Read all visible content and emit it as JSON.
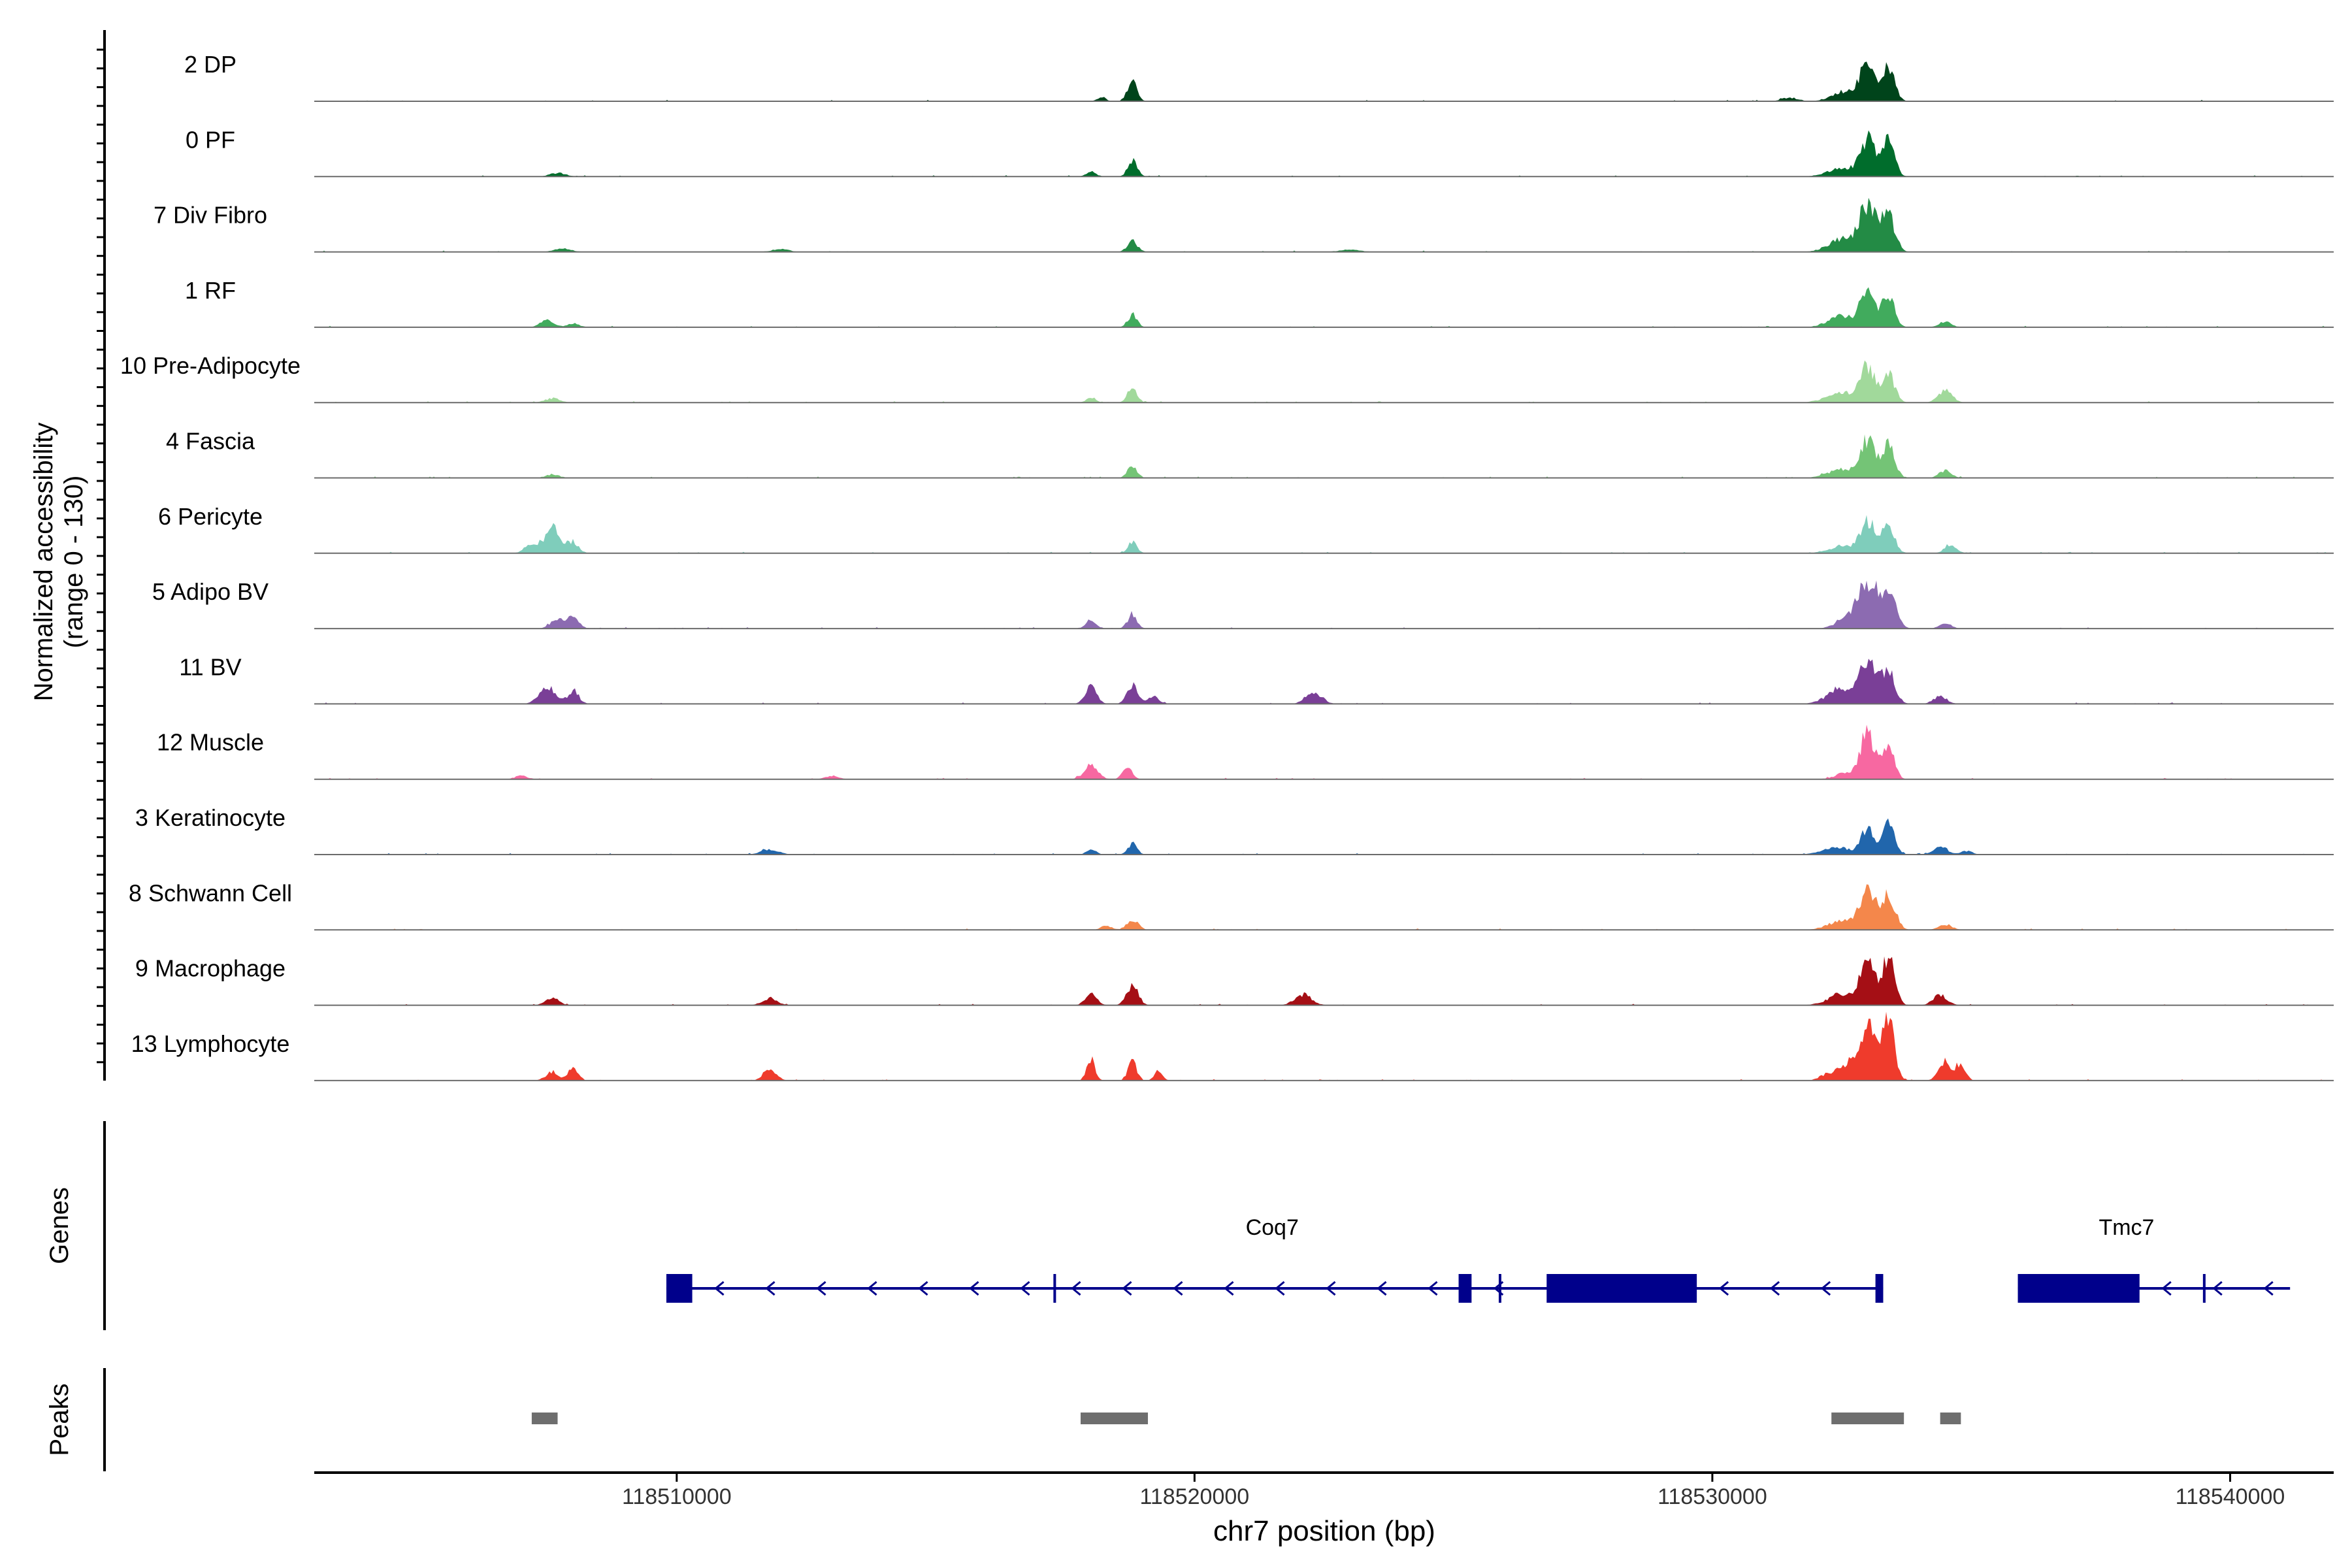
{
  "chart_data": {
    "type": "area",
    "title": "",
    "xlabel": "chr7 position (bp)",
    "ylabel": "Normalized accessibility",
    "ylabel_range": "(range 0 - 130)",
    "ylim": [
      0,
      130
    ],
    "xlim": [
      118503000,
      118542000
    ],
    "x_ticks": [
      118510000,
      118520000,
      118530000,
      118540000
    ],
    "x_tick_labels": [
      "118510000",
      "118520000",
      "118530000",
      "118540000"
    ],
    "panel_labels": {
      "genes": "Genes",
      "peaks": "Peaks"
    },
    "legend": "none",
    "grid": false,
    "tracks": [
      {
        "name": "2 DP",
        "color": "#00441B",
        "peaks": [
          [
            118533000,
            105,
            130
          ],
          [
            118533400,
            100,
            120
          ],
          [
            118532600,
            30,
            260
          ],
          [
            118531500,
            10,
            150
          ],
          [
            118518800,
            60,
            90
          ],
          [
            118518200,
            12,
            80
          ]
        ]
      },
      {
        "name": "0 PF",
        "color": "#006D2C",
        "peaks": [
          [
            118533000,
            100,
            140
          ],
          [
            118533400,
            95,
            120
          ],
          [
            118532500,
            25,
            260
          ],
          [
            118518800,
            45,
            90
          ],
          [
            118518000,
            15,
            90
          ],
          [
            118507700,
            10,
            150
          ]
        ]
      },
      {
        "name": "7 Div Fibro",
        "color": "#238B45",
        "peaks": [
          [
            118533000,
            125,
            160
          ],
          [
            118533400,
            100,
            130
          ],
          [
            118532500,
            35,
            260
          ],
          [
            118518800,
            30,
            100
          ],
          [
            118507800,
            10,
            160
          ],
          [
            118512000,
            8,
            160
          ],
          [
            118523000,
            6,
            200
          ]
        ]
      },
      {
        "name": "1 RF",
        "color": "#41AB5D",
        "peaks": [
          [
            118533000,
            100,
            140
          ],
          [
            118533400,
            85,
            120
          ],
          [
            118532500,
            30,
            260
          ],
          [
            118534500,
            15,
            120
          ],
          [
            118518800,
            35,
            90
          ],
          [
            118507500,
            20,
            130
          ],
          [
            118508000,
            10,
            120
          ]
        ]
      },
      {
        "name": "10 Pre-Adipocyte",
        "color": "#A1D99B",
        "peaks": [
          [
            118533000,
            95,
            140
          ],
          [
            118533400,
            80,
            120
          ],
          [
            118532500,
            30,
            280
          ],
          [
            118534500,
            35,
            130
          ],
          [
            118518800,
            45,
            90
          ],
          [
            118518000,
            15,
            90
          ],
          [
            118507600,
            12,
            140
          ]
        ]
      },
      {
        "name": "4 Fascia",
        "color": "#74C476",
        "peaks": [
          [
            118533000,
            100,
            140
          ],
          [
            118533400,
            90,
            120
          ],
          [
            118532500,
            25,
            260
          ],
          [
            118534500,
            20,
            120
          ],
          [
            118518800,
            35,
            90
          ],
          [
            118507600,
            10,
            130
          ]
        ]
      },
      {
        "name": "6 Pericyte",
        "color": "#7FCDBB",
        "peaks": [
          [
            118507600,
            70,
            150
          ],
          [
            118507200,
            25,
            130
          ],
          [
            118508000,
            30,
            110
          ],
          [
            118533000,
            90,
            140
          ],
          [
            118533400,
            80,
            120
          ],
          [
            118532500,
            20,
            240
          ],
          [
            118534600,
            25,
            110
          ],
          [
            118518800,
            30,
            90
          ]
        ]
      },
      {
        "name": "5 Adipo BV",
        "color": "#8C6BB1",
        "peaks": [
          [
            118533000,
            130,
            180
          ],
          [
            118533400,
            100,
            140
          ],
          [
            118532600,
            30,
            200
          ],
          [
            118507700,
            25,
            130
          ],
          [
            118508000,
            30,
            110
          ],
          [
            118518800,
            40,
            90
          ],
          [
            118518000,
            25,
            90
          ],
          [
            118534500,
            15,
            110
          ]
        ]
      },
      {
        "name": "11 BV",
        "color": "#7A3F97",
        "peaks": [
          [
            118533000,
            110,
            160
          ],
          [
            118533400,
            90,
            130
          ],
          [
            118532500,
            45,
            260
          ],
          [
            118507500,
            50,
            150
          ],
          [
            118508000,
            35,
            110
          ],
          [
            118518000,
            45,
            110
          ],
          [
            118518800,
            50,
            100
          ],
          [
            118519200,
            20,
            110
          ],
          [
            118522300,
            35,
            150
          ],
          [
            118534400,
            20,
            130
          ]
        ]
      },
      {
        "name": "12 Muscle",
        "color": "#F768A1",
        "peaks": [
          [
            118533000,
            130,
            130
          ],
          [
            118533400,
            95,
            110
          ],
          [
            118532600,
            20,
            200
          ],
          [
            118518000,
            40,
            130
          ],
          [
            118518700,
            35,
            90
          ],
          [
            118507000,
            10,
            120
          ],
          [
            118513000,
            10,
            120
          ]
        ]
      },
      {
        "name": "3 Keratinocyte",
        "color": "#2166AC",
        "peaks": [
          [
            118533000,
            70,
            130
          ],
          [
            118533400,
            85,
            120
          ],
          [
            118532400,
            20,
            260
          ],
          [
            118534400,
            25,
            130
          ],
          [
            118518800,
            30,
            90
          ],
          [
            118518000,
            15,
            90
          ],
          [
            118511800,
            15,
            160
          ],
          [
            118534900,
            10,
            120
          ]
        ]
      },
      {
        "name": "8 Schwann Cell",
        "color": "#F4874B",
        "peaks": [
          [
            118533000,
            105,
            150
          ],
          [
            118533400,
            95,
            130
          ],
          [
            118532500,
            25,
            260
          ],
          [
            118534500,
            15,
            130
          ],
          [
            118518800,
            30,
            110
          ],
          [
            118518300,
            12,
            100
          ]
        ]
      },
      {
        "name": "9 Macrophage",
        "color": "#A50F15",
        "peaks": [
          [
            118533000,
            135,
            130
          ],
          [
            118533400,
            135,
            120
          ],
          [
            118532500,
            30,
            260
          ],
          [
            118534400,
            30,
            130
          ],
          [
            118518800,
            55,
            110
          ],
          [
            118518000,
            30,
            110
          ],
          [
            118522100,
            30,
            160
          ],
          [
            118511800,
            20,
            140
          ],
          [
            118507600,
            20,
            130
          ]
        ]
      },
      {
        "name": "13 Lymphocyte",
        "color": "#EF3B2C",
        "peaks": [
          [
            118533000,
            150,
            150
          ],
          [
            118533400,
            190,
            110
          ],
          [
            118532600,
            45,
            180
          ],
          [
            118532200,
            15,
            140
          ],
          [
            118534500,
            55,
            120
          ],
          [
            118534800,
            45,
            90
          ],
          [
            118518000,
            60,
            80
          ],
          [
            118518800,
            55,
            80
          ],
          [
            118507600,
            25,
            120
          ],
          [
            118508000,
            35,
            90
          ],
          [
            118511800,
            35,
            120
          ],
          [
            118519300,
            25,
            80
          ]
        ]
      }
    ],
    "genes": [
      {
        "name": "Coq7",
        "strand": "-",
        "start": 118509800,
        "end": 118533300,
        "label_pos": 118521500,
        "exons": [
          [
            118509800,
            118510300
          ],
          [
            118525100,
            118525350
          ],
          [
            118526800,
            118529700
          ],
          [
            118533150,
            118533300
          ]
        ],
        "ticks": [
          118517300,
          118525900
        ]
      },
      {
        "name": "Tmc7",
        "strand": "-",
        "start": 118535900,
        "end": 118540400,
        "label_pos": 118538000,
        "exons": [
          [
            118535900,
            118538250
          ]
        ],
        "ticks": [
          118539500
        ]
      }
    ],
    "peaks": [
      [
        118507200,
        118507700
      ],
      [
        118517800,
        118519100
      ],
      [
        118532300,
        118533700
      ],
      [
        118534400,
        118534800
      ]
    ]
  }
}
